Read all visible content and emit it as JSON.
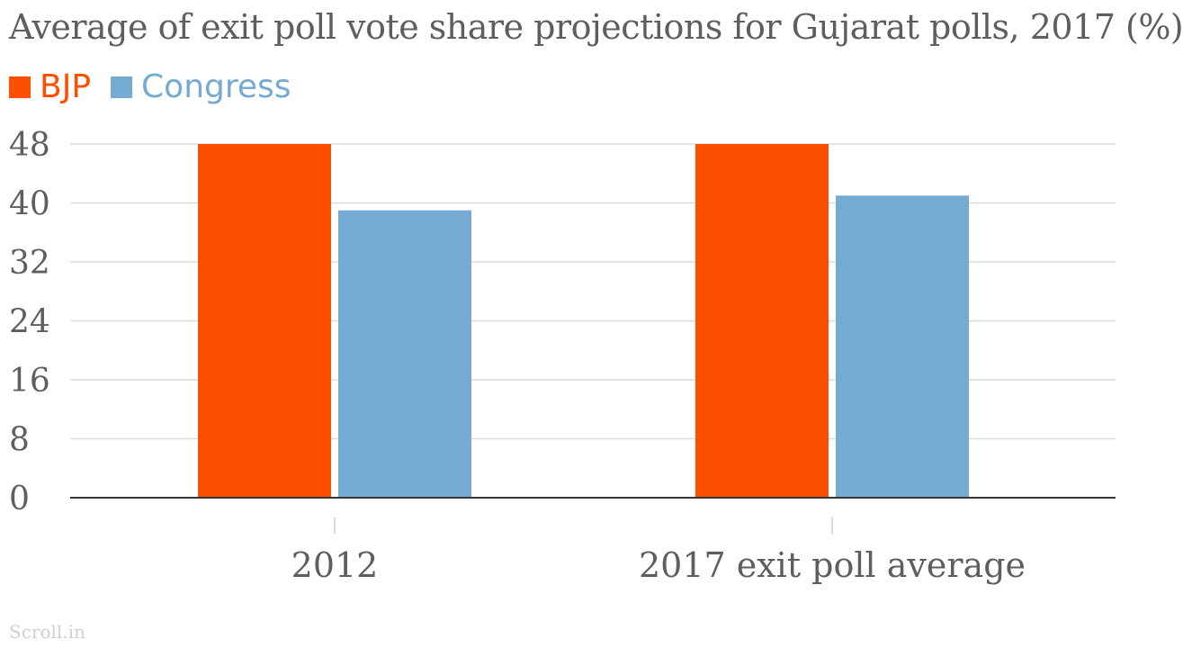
{
  "chart_data": {
    "type": "bar",
    "title": "Average of exit poll vote share projections for Gujarat polls, 2017 (%)",
    "categories": [
      "2012",
      "2017 exit poll average"
    ],
    "series": [
      {
        "name": "BJP",
        "color": "#fc5000",
        "values": [
          48,
          48
        ]
      },
      {
        "name": "Congress",
        "color": "#75abd2",
        "values": [
          39,
          41
        ]
      }
    ],
    "y_ticks": [
      "0",
      "8",
      "16",
      "24",
      "32",
      "40",
      "48"
    ],
    "ylim": [
      0,
      48
    ],
    "grid": true,
    "legend_position": "top-left"
  },
  "source": "Scroll.in"
}
